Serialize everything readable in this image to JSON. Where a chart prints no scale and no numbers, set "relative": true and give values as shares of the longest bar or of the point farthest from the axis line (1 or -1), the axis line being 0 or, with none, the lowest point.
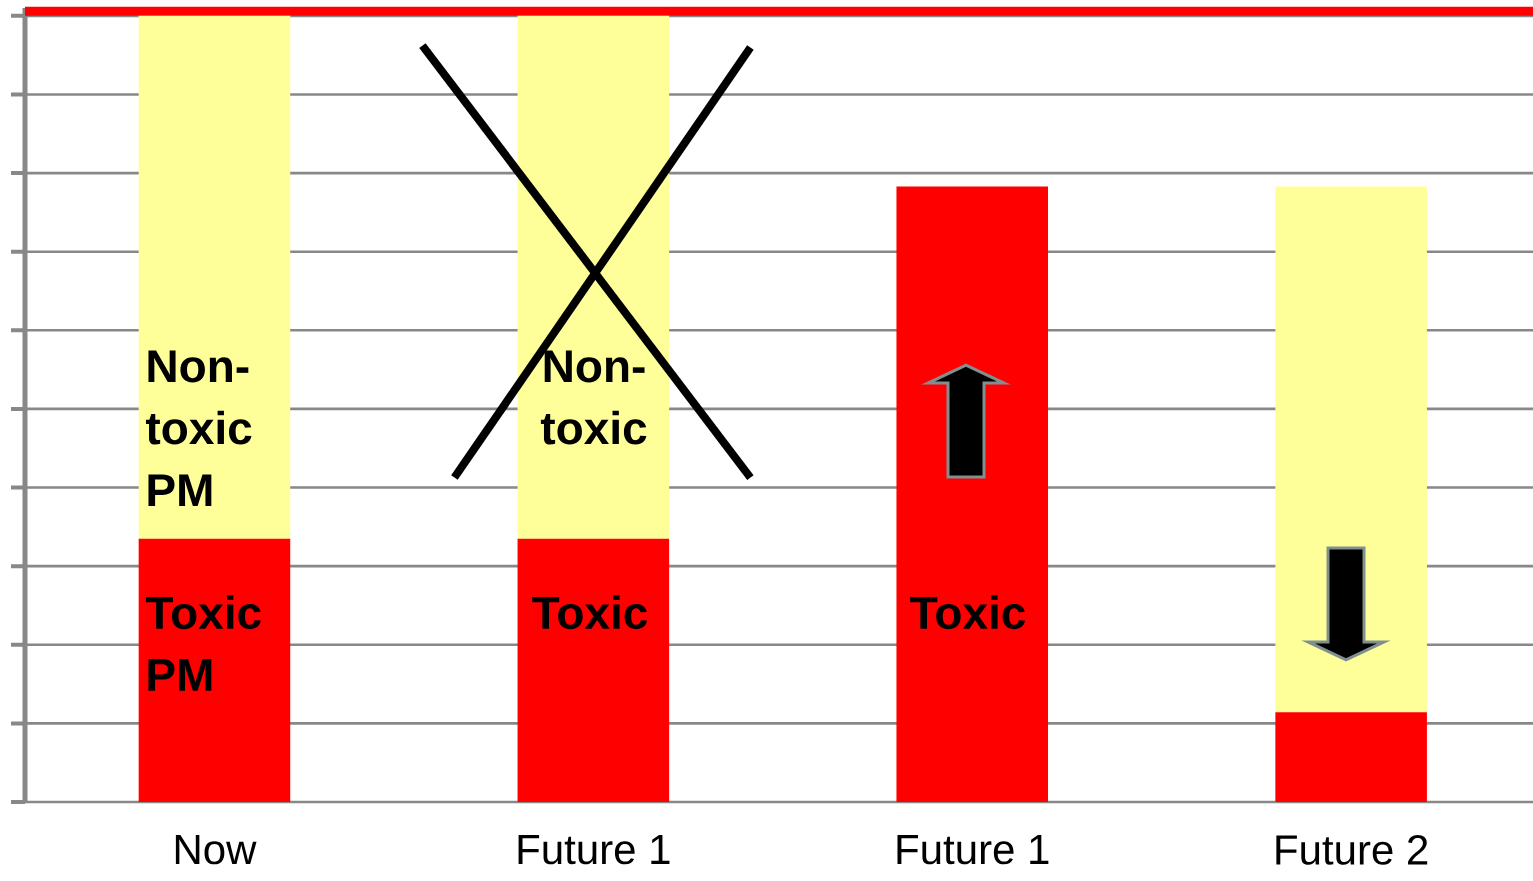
{
  "chart_data": {
    "type": "bar",
    "stacked": true,
    "relative": true,
    "grid": "y",
    "categories": [
      "Now",
      "Future 1",
      "Future 1",
      "Future 2"
    ],
    "series": [
      {
        "color": "#ff0000",
        "values": [
          0.335,
          0.335,
          0.783,
          0.114
        ]
      },
      {
        "color": "#ffff99",
        "values": [
          0.665,
          0.665,
          0,
          0.669
        ]
      }
    ],
    "ref_lines": [
      {
        "axis": "y",
        "value": 1.006,
        "color": "#ff0000"
      }
    ],
    "annotations": [
      "Non-toxic PM",
      "Toxic PM",
      "Non-toxic",
      "Toxic",
      "Toxic"
    ]
  }
}
